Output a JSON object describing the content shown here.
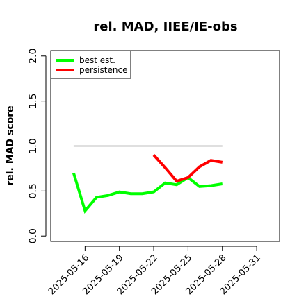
{
  "chart_data": {
    "type": "line",
    "title": "rel. MAD, IIEE/IE-obs",
    "y_label": "rel. MAD score",
    "x": [
      "2025-05-15",
      "2025-05-16",
      "2025-05-17",
      "2025-05-18",
      "2025-05-19",
      "2025-05-20",
      "2025-05-21",
      "2025-05-22",
      "2025-05-23",
      "2025-05-24",
      "2025-05-25",
      "2025-05-26",
      "2025-05-27",
      "2025-05-28"
    ],
    "series": [
      {
        "name": "best est.",
        "color": "#00ff00",
        "values": [
          0.7,
          0.28,
          0.43,
          0.45,
          0.49,
          0.47,
          0.47,
          0.49,
          0.59,
          0.57,
          0.65,
          0.55,
          0.56,
          0.58
        ]
      },
      {
        "name": "persistence",
        "color": "#ff0000",
        "values": [
          null,
          null,
          null,
          null,
          null,
          null,
          null,
          0.9,
          0.76,
          0.61,
          0.65,
          0.77,
          0.84,
          0.82
        ]
      }
    ],
    "hline": {
      "y": 1,
      "x": [
        "2025-05-15",
        "2025-05-28"
      ],
      "color": "#808080"
    },
    "xlim": [
      "2025-05-13",
      "2025-06-02"
    ],
    "xticks": [
      "2025-05-16",
      "2025-05-19",
      "2025-05-22",
      "2025-05-25",
      "2025-05-28",
      "2025-05-31"
    ],
    "ylim": [
      -0.06,
      2.06
    ],
    "yticks": [
      {
        "value": 0,
        "label": "0.0"
      },
      0.5,
      {
        "value": 1,
        "label": "1.0"
      },
      1.5,
      {
        "value": 2,
        "label": "2.0"
      }
    ],
    "legend": "top-left"
  }
}
